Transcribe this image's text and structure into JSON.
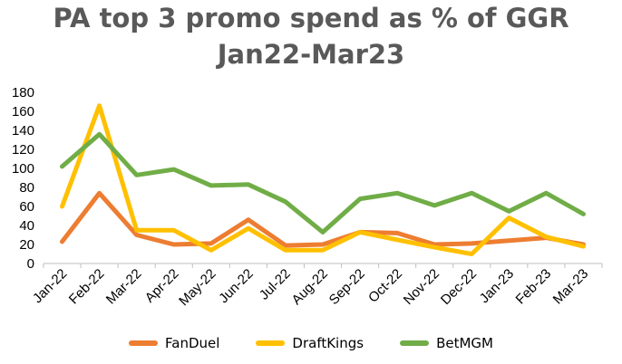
{
  "chart_data": {
    "type": "line",
    "title": "PA top 3 promo spend as % of GGR",
    "subtitle": "Jan22-Mar23",
    "categories": [
      "Jan-22",
      "Feb-22",
      "Mar-22",
      "Apr-22",
      "May-22",
      "Jun-22",
      "Jul-22",
      "Aug-22",
      "Sep-22",
      "Oct-22",
      "Nov-22",
      "Dec-22",
      "Jan-23",
      "Feb-23",
      "Mar-23"
    ],
    "ylim": [
      0,
      180
    ],
    "yticks": [
      0,
      20,
      40,
      60,
      80,
      100,
      120,
      140,
      160,
      180
    ],
    "grid": false,
    "legend_position": "bottom",
    "series": [
      {
        "name": "FanDuel",
        "color": "#ED7D31",
        "values": [
          23,
          74,
          30,
          20,
          21,
          46,
          19,
          20,
          33,
          32,
          20,
          21,
          24,
          27,
          20
        ]
      },
      {
        "name": "DraftKings",
        "color": "#FFC000",
        "values": [
          60,
          166,
          35,
          35,
          14,
          37,
          14,
          14,
          33,
          25,
          17,
          10,
          48,
          28,
          18
        ]
      },
      {
        "name": "BetMGM",
        "color": "#70AD47",
        "values": [
          102,
          136,
          93,
          99,
          82,
          83,
          65,
          33,
          68,
          74,
          61,
          74,
          55,
          74,
          52
        ]
      }
    ]
  }
}
